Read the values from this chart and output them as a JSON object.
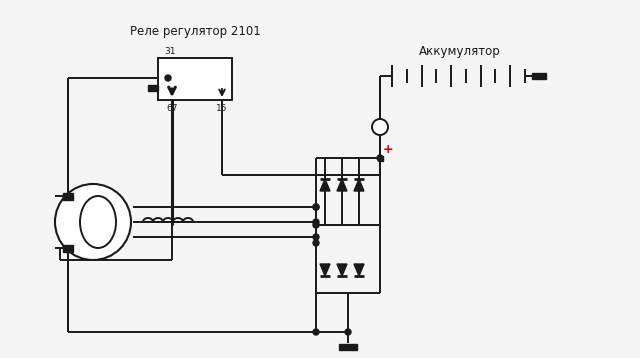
{
  "title_relay": "Реле регулятор 2101",
  "title_battery": "Аккумулятор",
  "label_31": "31",
  "label_67": "67",
  "label_15": "15",
  "bg_color": "#f5f5f5",
  "line_color": "#1a1a1a",
  "red_color": "#cc0000",
  "fig_width": 6.4,
  "fig_height": 3.58,
  "dpi": 100
}
